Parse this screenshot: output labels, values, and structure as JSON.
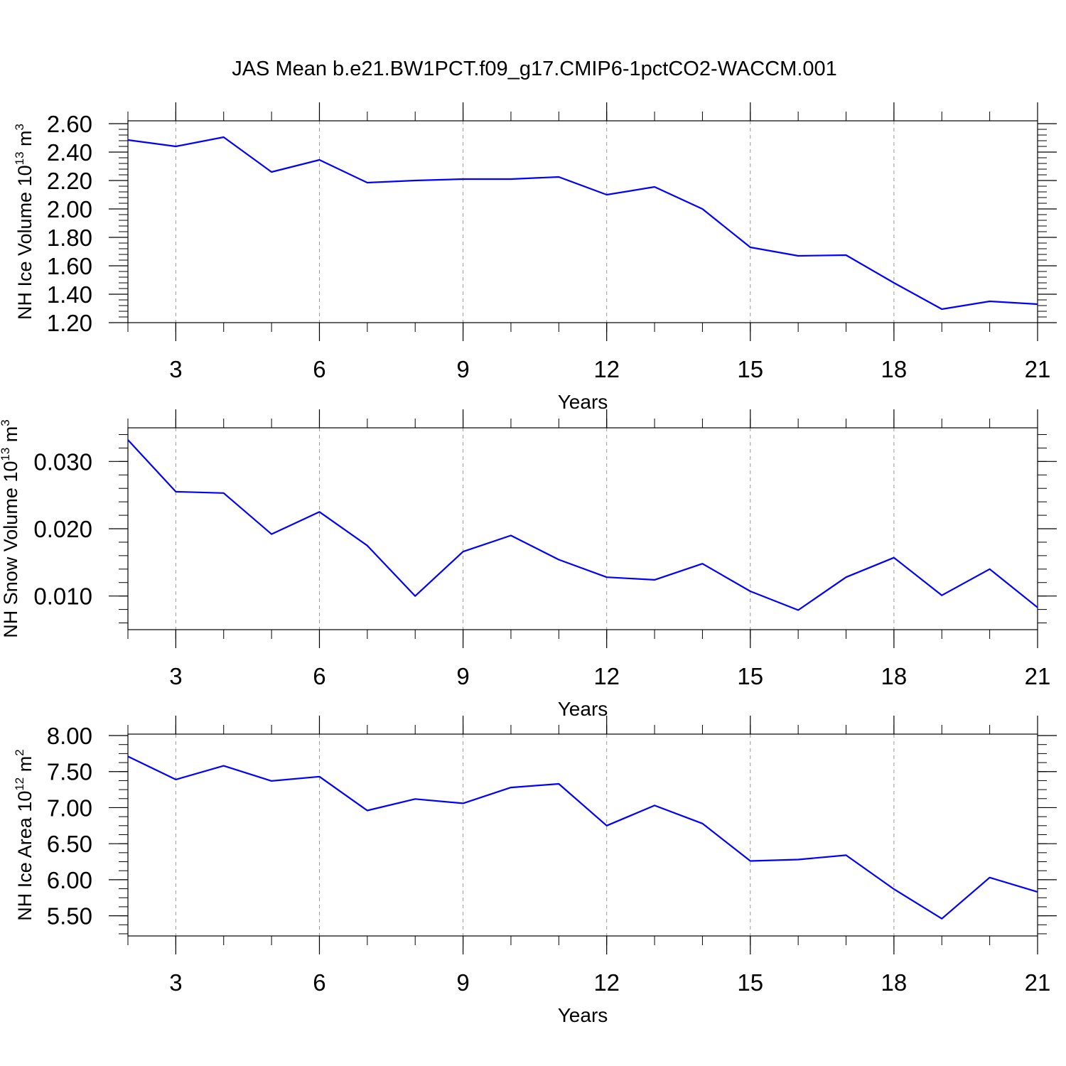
{
  "title": "JAS Mean b.e21.BW1PCT.f09_g17.CMIP6-1pctCO2-WACCM.001",
  "colors": {
    "series": "#0000ff",
    "axes": "#000000",
    "grid": "#999999",
    "background": "#ffffff"
  },
  "chart_data": [
    {
      "type": "line",
      "xlabel": "Years",
      "ylabel": "NH Ice Volume 10",
      "ylabel_sup": "13",
      "ylabel_unit": "m",
      "ylabel_unit_sup": "3",
      "xlim": [
        2,
        21
      ],
      "ylim": [
        1.2,
        2.62
      ],
      "xticks": [
        "3",
        "6",
        "9",
        "12",
        "15",
        "18",
        "21"
      ],
      "yticks": [
        "1.20",
        "1.40",
        "1.60",
        "1.80",
        "2.00",
        "2.20",
        "2.40",
        "2.60"
      ],
      "grid": "vertical dashed at major x ticks",
      "x": [
        2,
        3,
        4,
        5,
        6,
        7,
        8,
        9,
        10,
        11,
        12,
        13,
        14,
        15,
        16,
        17,
        18,
        19,
        20,
        21
      ],
      "series": [
        {
          "values": [
            2.485,
            2.44,
            2.505,
            2.26,
            2.345,
            2.185,
            2.2,
            2.21,
            2.21,
            2.225,
            2.1,
            2.155,
            2.0,
            1.73,
            1.67,
            1.675,
            1.48,
            1.295,
            1.35,
            1.33
          ]
        }
      ]
    },
    {
      "type": "line",
      "xlabel": "Years",
      "ylabel": "NH Snow Volume 10",
      "ylabel_sup": "13",
      "ylabel_unit": "m",
      "ylabel_unit_sup": "3",
      "xlim": [
        2,
        21
      ],
      "ylim": [
        0.005,
        0.035
      ],
      "xticks": [
        "3",
        "6",
        "9",
        "12",
        "15",
        "18",
        "21"
      ],
      "yticks": [
        "0.010",
        "0.020",
        "0.030"
      ],
      "grid": "vertical dashed at major x ticks",
      "x": [
        2,
        3,
        4,
        5,
        6,
        7,
        8,
        9,
        10,
        11,
        12,
        13,
        14,
        15,
        16,
        17,
        18,
        19,
        20,
        21
      ],
      "series": [
        {
          "values": [
            0.0332,
            0.0255,
            0.0253,
            0.0192,
            0.0225,
            0.0175,
            0.01,
            0.0166,
            0.019,
            0.0154,
            0.0128,
            0.0124,
            0.0148,
            0.0107,
            0.0079,
            0.0128,
            0.0157,
            0.0101,
            0.014,
            0.0083
          ]
        }
      ]
    },
    {
      "type": "line",
      "xlabel": "Years",
      "ylabel": "NH Ice Area 10",
      "ylabel_sup": "12",
      "ylabel_unit": "m",
      "ylabel_unit_sup": "2",
      "xlim": [
        2,
        21
      ],
      "ylim": [
        5.22,
        8.02
      ],
      "xticks": [
        "3",
        "6",
        "9",
        "12",
        "15",
        "18",
        "21"
      ],
      "yticks": [
        "5.50",
        "6.00",
        "6.50",
        "7.00",
        "7.50",
        "8.00"
      ],
      "grid": "vertical dashed at major x ticks",
      "x": [
        2,
        3,
        4,
        5,
        6,
        7,
        8,
        9,
        10,
        11,
        12,
        13,
        14,
        15,
        16,
        17,
        18,
        19,
        20,
        21
      ],
      "series": [
        {
          "values": [
            7.71,
            7.39,
            7.58,
            7.37,
            7.43,
            6.96,
            7.12,
            7.06,
            7.28,
            7.33,
            6.75,
            7.03,
            6.78,
            6.26,
            6.28,
            6.34,
            5.87,
            5.46,
            6.03,
            5.83
          ]
        }
      ]
    }
  ]
}
